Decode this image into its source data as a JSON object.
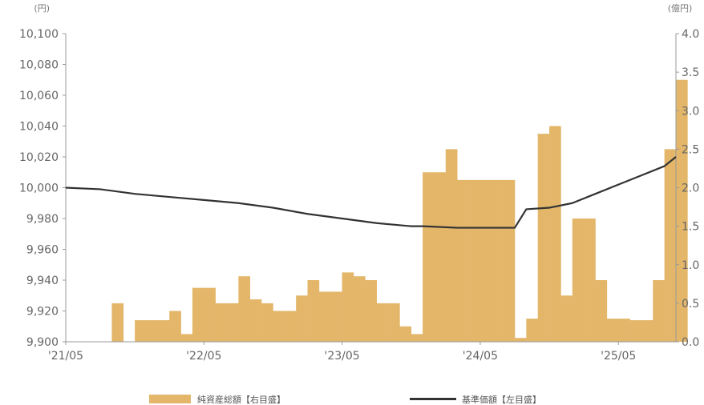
{
  "chart_data": {
    "type": "bar",
    "left_unit": "(円)",
    "right_unit": "(億円)",
    "x_ticks": [
      "'21/05",
      "'22/05",
      "'23/05",
      "'24/05",
      "'25/05"
    ],
    "y_left": {
      "min": 9900,
      "max": 10100,
      "ticks": [
        "9,900",
        "9,920",
        "9,940",
        "9,960",
        "9,980",
        "10,000",
        "10,020",
        "10,040",
        "10,060",
        "10,080",
        "10,100"
      ]
    },
    "y_right": {
      "min": 0,
      "max": 4,
      "ticks": [
        "0.0",
        "0.5",
        "1.0",
        "1.5",
        "2.0",
        "2.5",
        "3.0",
        "3.5",
        "4.0"
      ]
    },
    "series": [
      {
        "name": "純資産総額【右目盛】",
        "type": "bar",
        "color": "#e3b66a",
        "x": [
          "2021-05",
          "2021-06",
          "2021-07",
          "2021-08",
          "2021-09",
          "2021-10",
          "2021-11",
          "2021-12",
          "2022-01",
          "2022-02",
          "2022-03",
          "2022-04",
          "2022-05",
          "2022-06",
          "2022-07",
          "2022-08",
          "2022-09",
          "2022-10",
          "2022-11",
          "2022-12",
          "2023-01",
          "2023-02",
          "2023-03",
          "2023-04",
          "2023-05",
          "2023-06",
          "2023-07",
          "2023-08",
          "2023-09",
          "2023-10",
          "2023-11",
          "2023-12",
          "2024-01",
          "2024-02",
          "2024-03",
          "2024-04",
          "2024-05",
          "2024-06",
          "2024-07",
          "2024-08",
          "2024-09",
          "2024-10",
          "2024-11",
          "2024-12",
          "2025-01",
          "2025-02",
          "2025-03",
          "2025-04",
          "2025-05",
          "2025-06",
          "2025-07",
          "2025-08",
          "2025-09",
          "2025-10"
        ],
        "values": [
          0,
          0,
          0,
          0,
          0.5,
          0,
          0.28,
          0.28,
          0.28,
          0.4,
          0.1,
          0.7,
          0.7,
          0.5,
          0.5,
          0.85,
          0.55,
          0.5,
          0.4,
          0.4,
          0.6,
          0.8,
          0.65,
          0.65,
          0.9,
          0.85,
          0.8,
          0.5,
          0.5,
          0.2,
          0.1,
          2.2,
          2.2,
          2.5,
          2.1,
          2.1,
          2.1,
          2.1,
          2.1,
          0.05,
          0.3,
          2.7,
          2.8,
          0.6,
          1.6,
          1.6,
          0.8,
          0.3,
          0.3,
          0.28,
          0.28,
          0.8,
          2.5,
          3.4
        ]
      },
      {
        "name": "基準価額【左目盛】",
        "type": "line",
        "color": "#333333",
        "x": [
          "2021-05",
          "2021-08",
          "2021-11",
          "2022-02",
          "2022-05",
          "2022-08",
          "2022-11",
          "2023-02",
          "2023-05",
          "2023-08",
          "2023-11",
          "2023-12",
          "2024-03",
          "2024-06",
          "2024-08",
          "2024-09",
          "2024-11",
          "2025-01",
          "2025-03",
          "2025-05",
          "2025-07",
          "2025-09",
          "2025-10"
        ],
        "values": [
          10000,
          9999,
          9996,
          9994,
          9992,
          9990,
          9987,
          9983,
          9980,
          9977,
          9975,
          9975,
          9974,
          9974,
          9974,
          9986,
          9987,
          9990,
          9996,
          10002,
          10008,
          10014,
          10020
        ]
      }
    ],
    "legend": [
      "純資産総額【右目盛】",
      "基準価額【左目盛】"
    ],
    "legend_position": "bottom"
  }
}
